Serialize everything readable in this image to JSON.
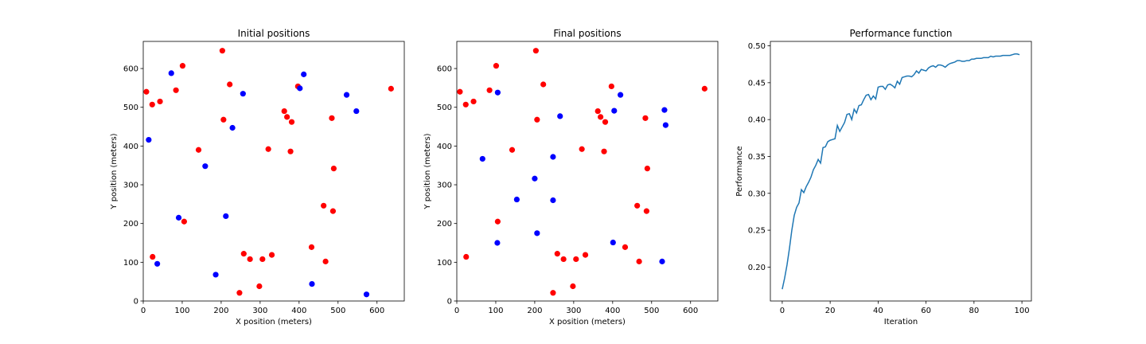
{
  "chart_data": [
    {
      "type": "scatter",
      "title": "Initial positions",
      "xlabel": "X position (meters)",
      "ylabel": "Y position (meters)",
      "xlim": [
        0,
        670
      ],
      "ylim": [
        0,
        670
      ],
      "xticks": [
        0,
        100,
        200,
        300,
        400,
        500,
        600
      ],
      "yticks": [
        0,
        100,
        200,
        300,
        400,
        500,
        600
      ],
      "grid": false,
      "series": [
        {
          "color": "#ff0000",
          "points": [
            [
              8,
              540
            ],
            [
              23,
              507
            ],
            [
              43,
              515
            ],
            [
              84,
              544
            ],
            [
              101,
              607
            ],
            [
              203,
              646
            ],
            [
              222,
              559
            ],
            [
              397,
              554
            ],
            [
              636,
              548
            ],
            [
              206,
              468
            ],
            [
              362,
              490
            ],
            [
              369,
              475
            ],
            [
              381,
              462
            ],
            [
              484,
              472
            ],
            [
              142,
              390
            ],
            [
              321,
              392
            ],
            [
              378,
              386
            ],
            [
              489,
              342
            ],
            [
              463,
              246
            ],
            [
              487,
              232
            ],
            [
              105,
              205
            ],
            [
              24,
              114
            ],
            [
              258,
              122
            ],
            [
              274,
              108
            ],
            [
              306,
              108
            ],
            [
              330,
              119
            ],
            [
              432,
              139
            ],
            [
              468,
              102
            ],
            [
              247,
              21
            ],
            [
              298,
              38
            ]
          ]
        },
        {
          "color": "#0000ff",
          "points": [
            [
              72,
              588
            ],
            [
              412,
              585
            ],
            [
              256,
              535
            ],
            [
              402,
              549
            ],
            [
              522,
              532
            ],
            [
              547,
              490
            ],
            [
              229,
              447
            ],
            [
              14,
              416
            ],
            [
              159,
              348
            ],
            [
              91,
              215
            ],
            [
              212,
              219
            ],
            [
              36,
              96
            ],
            [
              186,
              68
            ],
            [
              433,
              44
            ],
            [
              573,
              17
            ]
          ]
        }
      ]
    },
    {
      "type": "scatter",
      "title": "Final positions",
      "xlabel": "X position (meters)",
      "ylabel": "Y position (meters)",
      "xlim": [
        0,
        670
      ],
      "ylim": [
        0,
        670
      ],
      "xticks": [
        0,
        100,
        200,
        300,
        400,
        500,
        600
      ],
      "yticks": [
        0,
        100,
        200,
        300,
        400,
        500,
        600
      ],
      "grid": false,
      "series": [
        {
          "color": "#ff0000",
          "points": [
            [
              8,
              540
            ],
            [
              23,
              507
            ],
            [
              43,
              515
            ],
            [
              84,
              544
            ],
            [
              101,
              607
            ],
            [
              203,
              646
            ],
            [
              222,
              559
            ],
            [
              397,
              554
            ],
            [
              636,
              548
            ],
            [
              206,
              468
            ],
            [
              362,
              490
            ],
            [
              369,
              475
            ],
            [
              381,
              462
            ],
            [
              484,
              472
            ],
            [
              142,
              390
            ],
            [
              321,
              392
            ],
            [
              378,
              386
            ],
            [
              489,
              342
            ],
            [
              463,
              246
            ],
            [
              487,
              232
            ],
            [
              105,
              205
            ],
            [
              24,
              114
            ],
            [
              258,
              122
            ],
            [
              274,
              108
            ],
            [
              306,
              108
            ],
            [
              330,
              119
            ],
            [
              432,
              139
            ],
            [
              468,
              102
            ],
            [
              247,
              21
            ],
            [
              298,
              38
            ]
          ]
        },
        {
          "color": "#0000ff",
          "points": [
            [
              105,
              538
            ],
            [
              420,
              532
            ],
            [
              533,
              493
            ],
            [
              404,
              491
            ],
            [
              536,
              454
            ],
            [
              265,
              477
            ],
            [
              66,
              367
            ],
            [
              247,
              372
            ],
            [
              200,
              316
            ],
            [
              154,
              262
            ],
            [
              247,
              260
            ],
            [
              206,
              175
            ],
            [
              104,
              150
            ],
            [
              401,
              151
            ],
            [
              527,
              102
            ]
          ]
        }
      ]
    },
    {
      "type": "line",
      "title": "Performance function",
      "xlabel": "Iteration",
      "ylabel": "Performance",
      "xlim": [
        -4.95,
        103.95
      ],
      "ylim": [
        0.154,
        0.506
      ],
      "xticks": [
        0,
        20,
        40,
        60,
        80,
        100
      ],
      "yticks": [
        0.2,
        0.25,
        0.3,
        0.35,
        0.4,
        0.45,
        0.5
      ],
      "grid": false,
      "series": [
        {
          "color": "#1f77b4",
          "x": [
            0,
            1,
            2,
            3,
            4,
            5,
            6,
            7,
            8,
            9,
            10,
            11,
            12,
            13,
            14,
            15,
            16,
            17,
            18,
            19,
            20,
            21,
            22,
            23,
            24,
            25,
            26,
            27,
            28,
            29,
            30,
            31,
            32,
            33,
            34,
            35,
            36,
            37,
            38,
            39,
            40,
            41,
            42,
            43,
            44,
            45,
            46,
            47,
            48,
            49,
            50,
            51,
            52,
            53,
            54,
            55,
            56,
            57,
            58,
            59,
            60,
            61,
            62,
            63,
            64,
            65,
            66,
            67,
            68,
            69,
            70,
            71,
            72,
            73,
            74,
            75,
            76,
            77,
            78,
            79,
            80,
            81,
            82,
            83,
            84,
            85,
            86,
            87,
            88,
            89,
            90,
            91,
            92,
            93,
            94,
            95,
            96,
            97,
            98,
            99
          ],
          "y": [
            0.17,
            0.185,
            0.203,
            0.225,
            0.25,
            0.27,
            0.281,
            0.287,
            0.305,
            0.301,
            0.309,
            0.315,
            0.322,
            0.332,
            0.338,
            0.346,
            0.341,
            0.362,
            0.363,
            0.37,
            0.372,
            0.373,
            0.374,
            0.392,
            0.384,
            0.39,
            0.396,
            0.407,
            0.408,
            0.4,
            0.414,
            0.409,
            0.419,
            0.42,
            0.427,
            0.433,
            0.434,
            0.427,
            0.432,
            0.428,
            0.444,
            0.445,
            0.445,
            0.441,
            0.447,
            0.448,
            0.446,
            0.443,
            0.452,
            0.448,
            0.457,
            0.458,
            0.459,
            0.459,
            0.458,
            0.461,
            0.466,
            0.463,
            0.468,
            0.467,
            0.466,
            0.47,
            0.472,
            0.473,
            0.471,
            0.474,
            0.474,
            0.473,
            0.471,
            0.474,
            0.476,
            0.477,
            0.478,
            0.48,
            0.48,
            0.479,
            0.479,
            0.48,
            0.48,
            0.482,
            0.482,
            0.483,
            0.483,
            0.483,
            0.484,
            0.484,
            0.484,
            0.486,
            0.485,
            0.486,
            0.486,
            0.486,
            0.487,
            0.487,
            0.487,
            0.487,
            0.488,
            0.489,
            0.489,
            0.488
          ]
        }
      ]
    }
  ]
}
